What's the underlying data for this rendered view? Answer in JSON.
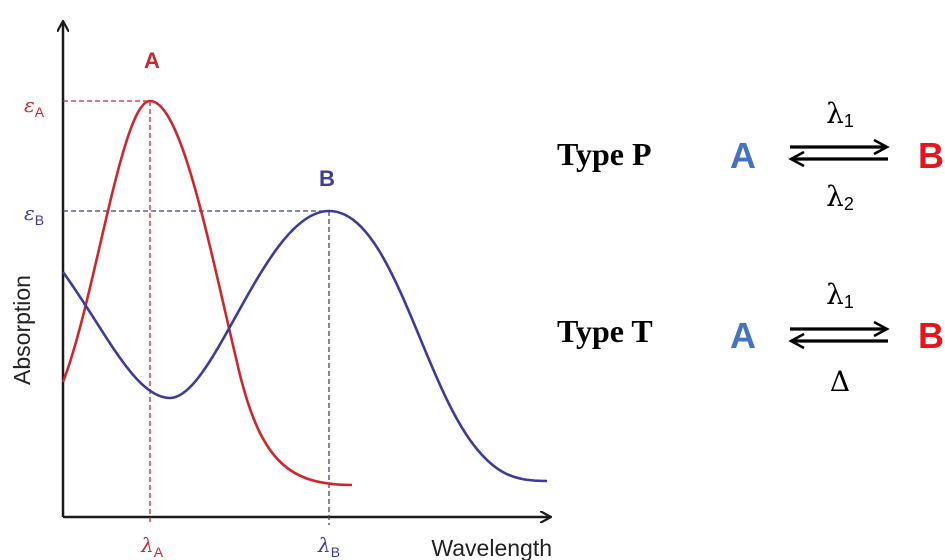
{
  "plot": {
    "ylabel": "Absorption",
    "xlabel": "Wavelength",
    "series": [
      {
        "label": "A",
        "color": "#d0262b"
      },
      {
        "label": "B",
        "color": "#3b3b9b"
      }
    ],
    "eps_a_symbol": "ε",
    "eps_a_sub": "A",
    "eps_b_symbol": "ε",
    "eps_b_sub": "B",
    "lambda_a_symbol": "λ",
    "lambda_a_sub": "A",
    "lambda_b_symbol": "λ",
    "lambda_b_sub": "B"
  },
  "schemes": [
    {
      "label": "Type P",
      "from": "A",
      "to": "B",
      "forward_symbol": "λ",
      "forward_sub": "1",
      "reverse_symbol": "λ",
      "reverse_sub": "2"
    },
    {
      "label": "Type T",
      "from": "A",
      "to": "B",
      "forward_symbol": "λ",
      "forward_sub": "1",
      "reverse_symbol": "Δ",
      "reverse_sub": ""
    }
  ],
  "colors": {
    "species_a": "#4472c4",
    "species_b": "#e8141c",
    "curve_a": "#d0262b",
    "curve_b": "#3b3b9b"
  }
}
